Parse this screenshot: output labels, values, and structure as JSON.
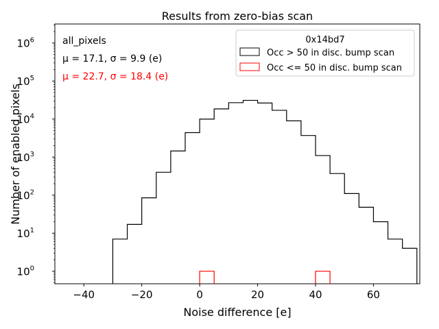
{
  "chart_data": {
    "type": "histogram",
    "title": "Results from zero-bias scan",
    "xlabel": "Noise difference [e]",
    "ylabel": "Number of enabled pixels",
    "xlim": [
      -50,
      76
    ],
    "ylim_log10": [
      -0.33,
      6.5
    ],
    "yscale": "log",
    "x_ticks": [
      -40,
      -20,
      0,
      20,
      40,
      60
    ],
    "x_tick_labels": [
      "−40",
      "−20",
      "0",
      "20",
      "40",
      "60"
    ],
    "y_ticks_exp": [
      0,
      1,
      2,
      3,
      4,
      5,
      6
    ],
    "y_tick_base": "10",
    "bin_edges": [
      -30,
      -25,
      -20,
      -15,
      -10,
      -5,
      0,
      5,
      10,
      15,
      20,
      25,
      30,
      35,
      40,
      45,
      50,
      55,
      60,
      65,
      70,
      75
    ],
    "series": [
      {
        "name": "Occ > 50 in disc. bump scan",
        "color": "#000000",
        "values": [
          7,
          17,
          85,
          400,
          1450,
          4400,
          10000,
          18500,
          27000,
          31000,
          26500,
          17000,
          9000,
          3700,
          1100,
          370,
          110,
          48,
          20,
          7,
          4
        ]
      },
      {
        "name": "Occ <= 50 in disc. bump scan",
        "color": "#ff0000",
        "values": [
          0,
          0,
          0,
          0,
          0,
          0,
          1,
          0,
          0,
          0,
          0,
          0,
          0,
          0,
          1,
          0,
          0,
          0,
          0,
          0,
          0
        ]
      }
    ],
    "legend": {
      "title": "0x14bd7",
      "position": "top-right"
    },
    "annotations": {
      "label": "all_pixels",
      "stats_black": "μ = 17.1, σ = 9.9 (e)",
      "stats_red": "μ = 22.7, σ = 18.4 (e)"
    }
  }
}
